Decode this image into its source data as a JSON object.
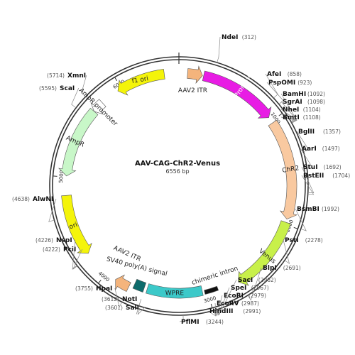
{
  "plasmid": {
    "name": "AAV-CAG-ChR2-Venus",
    "length_label": "6556 bp",
    "length": 6556
  },
  "ticks": [
    {
      "value": 1000,
      "label": "1000"
    },
    {
      "value": 2000,
      "label": "2000"
    },
    {
      "value": 3000,
      "label": "3000"
    },
    {
      "value": 4000,
      "label": "4000"
    },
    {
      "value": 5000,
      "label": "5000"
    },
    {
      "value": 6000,
      "label": "6000"
    }
  ],
  "features": [
    {
      "key": "f1-ori",
      "label": "f1 ori",
      "start": 5960,
      "end": 6420,
      "color": "#f4f40a",
      "direction": "reverse",
      "label_style": "inside"
    },
    {
      "key": "aav2-itr-left",
      "label": "AAV2 ITR",
      "start": 80,
      "end": 220,
      "color": "#f4b47c",
      "direction": "forward",
      "label_style": "inside-below"
    },
    {
      "key": "cag-promoter",
      "label": "CAG Promoter",
      "start": 230,
      "end": 960,
      "color": "#e81ce4",
      "direction": "forward",
      "label_style": "inside-white"
    },
    {
      "key": "chr2",
      "label": "ChR2",
      "start": 1020,
      "end": 1950,
      "color": "#f9c9a0",
      "direction": "forward",
      "label_style": "inside"
    },
    {
      "key": "venus",
      "label": "Venus",
      "start": 1980,
      "end": 2700,
      "color": "#c8f04a",
      "direction": "forward",
      "label_style": "inside"
    },
    {
      "key": "chimeric-intron",
      "label": "chimeric intron",
      "start": 2900,
      "end": 3030,
      "color": "#111111",
      "direction": "none",
      "label_style": "inside"
    },
    {
      "key": "wpre",
      "label": "WPRE",
      "start": 3050,
      "end": 3590,
      "color": "#3cc9c9",
      "direction": "none",
      "label_style": "inside"
    },
    {
      "key": "sv40",
      "label": "SV40 poly(A) signal",
      "start": 3620,
      "end": 3720,
      "color": "#0e6b6b",
      "direction": "none",
      "label_style": "inside"
    },
    {
      "key": "aav2-itr-right",
      "label": "AAV2 ITR",
      "start": 3760,
      "end": 3900,
      "color": "#f4b47c",
      "direction": "forward",
      "label_style": "inside"
    },
    {
      "key": "ori",
      "label": "ori",
      "start": 4250,
      "end": 4830,
      "color": "#f4f40a",
      "direction": "reverse",
      "label_style": "inside"
    },
    {
      "key": "ampr",
      "label": "AmpR",
      "start": 5010,
      "end": 5670,
      "color": "#c8f7c8",
      "direction": "reverse",
      "label_style": "inside"
    },
    {
      "key": "ampr-promoter",
      "label": "AmpR promoter",
      "start": 5670,
      "end": 5780,
      "color": "#ffffff",
      "direction": "reverse",
      "label_style": "inside"
    }
  ],
  "sites": [
    {
      "name": "NdeI",
      "pos": "(312)",
      "position": 312
    },
    {
      "name": "AfeI",
      "pos": "(858)",
      "position": 858
    },
    {
      "name": "PspOMI",
      "pos": "(923)",
      "position": 923
    },
    {
      "name": "BamHI",
      "pos": "(1092)",
      "position": 1092
    },
    {
      "name": "SgrAI",
      "pos": "(1098)",
      "position": 1098
    },
    {
      "name": "NheI",
      "pos": "(1104)",
      "position": 1104
    },
    {
      "name": "BmtI",
      "pos": "(1108)",
      "position": 1108
    },
    {
      "name": "BglII",
      "pos": "(1357)",
      "position": 1357
    },
    {
      "name": "AarI",
      "pos": "(1497)",
      "position": 1497
    },
    {
      "name": "StuI",
      "pos": "(1692)",
      "position": 1692
    },
    {
      "name": "BstEII",
      "pos": "(1704)",
      "position": 1704
    },
    {
      "name": "BsmBI",
      "pos": "(1992)",
      "position": 1992
    },
    {
      "name": "PstI",
      "pos": "(2278)",
      "position": 2278
    },
    {
      "name": "BlpI",
      "pos": "(2691)",
      "position": 2691
    },
    {
      "name": "SacI",
      "pos": "(2962)",
      "position": 2962
    },
    {
      "name": "SpeI",
      "pos": "(2967)",
      "position": 2967
    },
    {
      "name": "EcoRI",
      "pos": "(2979)",
      "position": 2979
    },
    {
      "name": "EcoRV",
      "pos": "(2987)",
      "position": 2987
    },
    {
      "name": "HindIII",
      "pos": "(2991)",
      "position": 2991
    },
    {
      "name": "PflMI",
      "pos": "(3244)",
      "position": 3244
    },
    {
      "name": "SalI",
      "pos": "(3601)",
      "position": 3601
    },
    {
      "name": "NotI",
      "pos": "(3612)",
      "position": 3612
    },
    {
      "name": "HpaI",
      "pos": "(3755)",
      "position": 3755
    },
    {
      "name": "PciI",
      "pos": "(4222)",
      "position": 4222
    },
    {
      "name": "NspI",
      "pos": "(4226)",
      "position": 4226
    },
    {
      "name": "AlwNI",
      "pos": "(4638)",
      "position": 4638
    },
    {
      "name": "ScaI",
      "pos": "(5595)",
      "position": 5595
    },
    {
      "name": "XmnI",
      "pos": "(5714)",
      "position": 5714
    }
  ]
}
